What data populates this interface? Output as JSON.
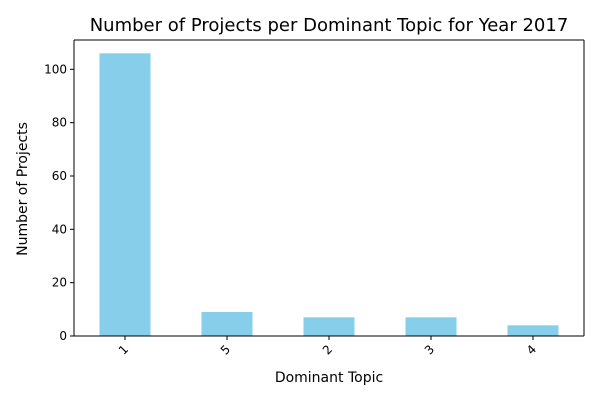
{
  "chart_data": {
    "type": "bar",
    "title": "Number of Projects per Dominant Topic for Year 2017",
    "xlabel": "Dominant Topic",
    "ylabel": "Number of Projects",
    "categories": [
      "1",
      "5",
      "2",
      "3",
      "4"
    ],
    "values": [
      106,
      9,
      7,
      7,
      4
    ],
    "ylim": [
      0,
      111
    ],
    "yticks": [
      0,
      20,
      40,
      60,
      80,
      100
    ],
    "grid": false,
    "bar_color": "#87CEEB",
    "xtick_rotation": 45
  }
}
